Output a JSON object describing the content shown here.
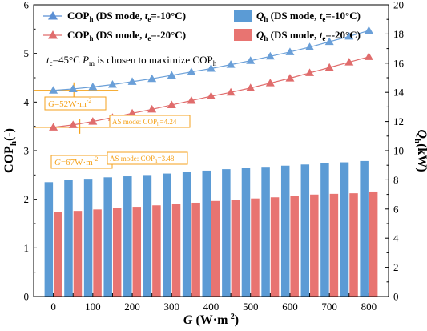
{
  "chart_data": {
    "type": "bar+line",
    "x": [
      0,
      50,
      100,
      150,
      200,
      250,
      300,
      350,
      400,
      450,
      500,
      550,
      600,
      650,
      700,
      750,
      800
    ],
    "xlim": [
      -50,
      850
    ],
    "xticks": [
      0,
      100,
      200,
      300,
      400,
      500,
      600,
      700,
      800
    ],
    "xlabel": {
      "main": "G",
      "unit": " (W·m",
      "sup": "-2",
      "close": ")"
    },
    "y_left": {
      "label": {
        "main": "COP",
        "sub": "h",
        "unit": "(-)"
      },
      "lim": [
        0,
        6
      ],
      "ticks": [
        0,
        1,
        2,
        3,
        4,
        5,
        6
      ]
    },
    "y_right": {
      "label": {
        "main": "Q",
        "sub": "h",
        "unit": "(kW)"
      },
      "lim": [
        0,
        20
      ],
      "ticks": [
        0,
        2,
        4,
        6,
        8,
        10,
        12,
        14,
        16,
        18,
        20
      ]
    },
    "series": [
      {
        "name": "COPh (DS mode, te=-10°C)",
        "kind": "line",
        "axis": "left",
        "color": "#6a9fd8",
        "values": [
          4.24,
          4.27,
          4.31,
          4.36,
          4.42,
          4.48,
          4.55,
          4.62,
          4.69,
          4.77,
          4.85,
          4.94,
          5.03,
          5.13,
          5.24,
          5.35,
          5.47
        ]
      },
      {
        "name": "COPh (DS mode, te=-20°C)",
        "kind": "line",
        "axis": "left",
        "color": "#e06c6c",
        "values": [
          3.48,
          3.53,
          3.6,
          3.68,
          3.77,
          3.85,
          3.94,
          4.03,
          4.12,
          4.2,
          4.29,
          4.39,
          4.49,
          4.6,
          4.71,
          4.82,
          4.93
        ]
      },
      {
        "name": "Qh (DS mode, te=-10°C)",
        "kind": "bar",
        "axis": "right",
        "color": "#5b9bd5",
        "values": [
          7.84,
          7.97,
          8.07,
          8.17,
          8.24,
          8.33,
          8.43,
          8.53,
          8.63,
          8.73,
          8.8,
          8.89,
          8.97,
          9.05,
          9.13,
          9.2,
          9.29
        ]
      },
      {
        "name": "Qh (DS mode, te=-20°C)",
        "kind": "bar",
        "axis": "right",
        "color": "#e87471",
        "values": [
          5.78,
          5.87,
          5.97,
          6.07,
          6.15,
          6.25,
          6.33,
          6.43,
          6.55,
          6.63,
          6.72,
          6.8,
          6.91,
          6.99,
          7.04,
          7.08,
          7.2
        ]
      }
    ],
    "legend": [
      {
        "prefix": "COP",
        "sub": "h",
        "mid": " (DS mode, ",
        "var": "t",
        "varsub": "e",
        "suffix": "=-10°C)",
        "marker": "triangle",
        "color": "#5b8fd4"
      },
      {
        "prefix": "COP",
        "sub": "h",
        "mid": " (DS mode, ",
        "var": "t",
        "varsub": "e",
        "suffix": "=-20°C)",
        "marker": "triangle",
        "color": "#e06c6c"
      },
      {
        "prefix": "Q",
        "sub": "h",
        "mid": " (DS mode, ",
        "var": "t",
        "varsub": "e",
        "suffix": "=-10°C)",
        "marker": "box",
        "color": "#5b9bd5"
      },
      {
        "prefix": "Q",
        "sub": "h",
        "mid": " (DS mode, ",
        "var": "t",
        "varsub": "e",
        "suffix": "=-20°C)",
        "marker": "box",
        "color": "#e87471"
      }
    ],
    "condition_note": {
      "tc": "t",
      "tcsub": "c",
      "tcval": "=45°C",
      "pm": "P",
      "pmsub": "m",
      "rest": " is chosen to maximize COP",
      "restsub": "h"
    },
    "annotations": [
      {
        "value_label": "G",
        "value_text": "=52W·m",
        "value_sup": "-2",
        "mode_text": "AS mode: COP",
        "mode_sub": "h",
        "mode_val": "=4.24",
        "cop": 4.24,
        "g": 52
      },
      {
        "value_label": "G",
        "value_text": "=67W·m",
        "value_sup": "-2",
        "mode_text": "AS mode: COP",
        "mode_sub": "h",
        "mode_val": "=3.48",
        "cop": 3.48,
        "g": 67
      }
    ],
    "annotation_color": "#f5a21c",
    "grid": false
  }
}
